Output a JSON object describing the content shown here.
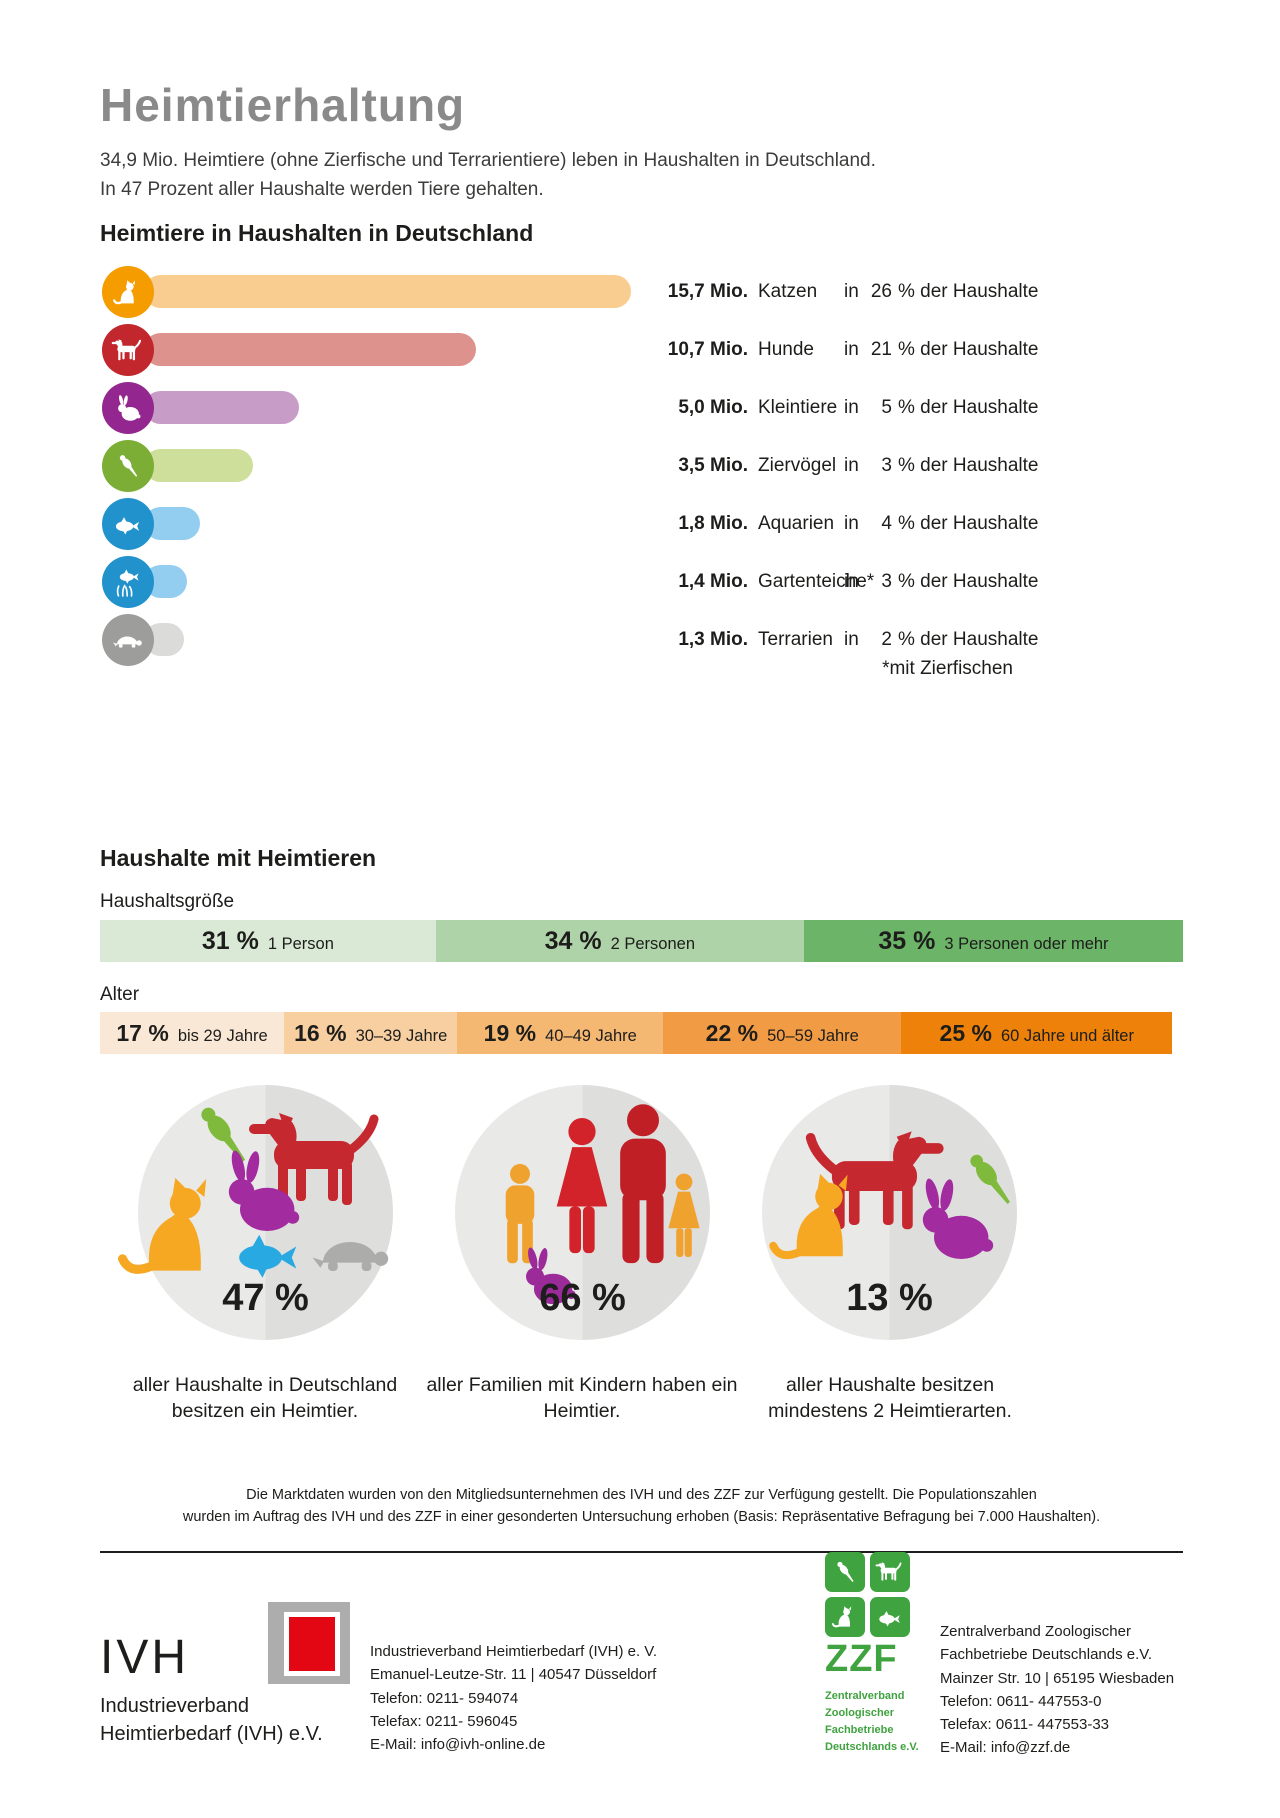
{
  "title": "Heimtierhaltung",
  "intro": {
    "line1": "34,9 Mio. Heimtiere (ohne Zierfische und Terrarientiere) leben in Haushalten in Deutschland.",
    "line2": "In 47 Prozent aller Haushalte werden Tiere gehalten."
  },
  "pets": {
    "heading": "Heimtiere in Haushalten in Deutschland",
    "share_prefix": "in",
    "share_suffix": "% der Haushalte",
    "footnote": "*mit Zierfischen",
    "rows": [
      {
        "value": "15,7 Mio.",
        "name": "Katzen",
        "pct": "26"
      },
      {
        "value": "10,7 Mio.",
        "name": "Hunde",
        "pct": "21"
      },
      {
        "value": "5,0 Mio.",
        "name": "Kleintiere",
        "pct": "5"
      },
      {
        "value": "3,5 Mio.",
        "name": "Ziervögel",
        "pct": "3"
      },
      {
        "value": "1,8 Mio.",
        "name": "Aquarien",
        "pct": "4"
      },
      {
        "value": "1,4 Mio.",
        "name": "Gartenteiche*",
        "pct": "3"
      },
      {
        "value": "1,3 Mio.",
        "name": "Terrarien",
        "pct": "2"
      }
    ]
  },
  "households": {
    "heading": "Haushalte mit Heimtieren",
    "size_label": "Haushaltsgröße",
    "size_segments": [
      {
        "pct": "31 %",
        "label": "1 Person"
      },
      {
        "pct": "34 %",
        "label": "2 Personen"
      },
      {
        "pct": "35 %",
        "label": "3 Personen oder mehr"
      }
    ],
    "age_label": "Alter",
    "age_segments": [
      {
        "pct": "17 %",
        "label": "bis 29 Jahre"
      },
      {
        "pct": "16 %",
        "label": "30–39 Jahre"
      },
      {
        "pct": "19 %",
        "label": "40–49 Jahre"
      },
      {
        "pct": "22 %",
        "label": "50–59 Jahre"
      },
      {
        "pct": "25 %",
        "label": "60 Jahre und älter"
      }
    ]
  },
  "stats": [
    {
      "value": "47 %",
      "caption_line1": "aller Haushalte in Deutschland",
      "caption_line2": "besitzen ein Heimtier."
    },
    {
      "value": "66 %",
      "caption_line1": "aller Familien mit Kindern haben ein",
      "caption_line2": "Heimtier."
    },
    {
      "value": "13 %",
      "caption_line1": "aller Haushalte besitzen",
      "caption_line2": "mindestens 2 Heimtierarten."
    }
  ],
  "disclaimer": {
    "line1": "Die Marktdaten wurden von den Mitgliedsunternehmen des IVH und des ZZF zur Verfügung gestellt. Die Populationszahlen",
    "line2": "wurden im Auftrag des IVH und des ZZF in einer gesonderten Untersuchung erhoben (Basis: Repräsentative Befragung bei 7.000 Haushalten)."
  },
  "footer": {
    "ivh": {
      "wordmark": "IVH",
      "org_line1": "Industrieverband",
      "org_line2": "Heimtierbedarf (IVH) e.V.",
      "address": [
        "Industrieverband Heimtierbedarf (IVH) e. V.",
        "Emanuel-Leutze-Str. 11 | 40547 Düsseldorf",
        "Telefon: 0211- 594074",
        "Telefax: 0211- 596045",
        "E-Mail: info@ivh-online.de"
      ]
    },
    "zzf": {
      "logo_text": "ZZF",
      "logo_sub": [
        "Zentralverband",
        "Zoologischer",
        "Fachbetriebe",
        "Deutschlands e.V."
      ],
      "address": [
        "Zentralverband Zoologischer",
        "Fachbetriebe Deutschlands e.V.",
        "Mainzer Str. 10 | 65195 Wiesbaden",
        "Telefon: 0611- 447553-0",
        "Telefax: 0611- 447553-33",
        "E-Mail: info@zzf.de"
      ]
    }
  },
  "colors": {
    "title_gray": "#8A8A8A",
    "text_dark": "#1D1D1B",
    "cat": "#F59C00",
    "cat_bar": "#F9CD90",
    "dog": "#C1272D",
    "dog_bar": "#DD928E",
    "small_animal": "#93278F",
    "small_animal_bar": "#C79DC8",
    "bird": "#7CAD35",
    "bird_bar": "#CDDF9B",
    "fish": "#2292CC",
    "fish_bar": "#93CEF0",
    "terrarium": "#9D9D9C",
    "terrarium_bar": "#DBDBDA",
    "household_segments": [
      "#DAE9D5",
      "#AFD3A8",
      "#6CB468"
    ],
    "age_segments": [
      "#FAE8D6",
      "#F8CFA0",
      "#F5B873",
      "#F29B45",
      "#EE810A"
    ],
    "stat_circle_bg": "#E9E9E8",
    "zzf_green": "#3FA33F",
    "ivh_red": "#E30613",
    "ivh_gray": "#ADADAD"
  },
  "chart_data": [
    {
      "type": "bar",
      "orientation": "horizontal",
      "title": "Heimtiere in Haushalten in Deutschland",
      "categories": [
        "Katzen",
        "Hunde",
        "Kleintiere",
        "Ziervögel",
        "Aquarien",
        "Gartenteiche*",
        "Terrarien"
      ],
      "values": [
        15.7,
        10.7,
        5.0,
        3.5,
        1.8,
        1.4,
        1.3
      ],
      "unit": "Mio.",
      "share_of_households_pct": [
        26,
        21,
        5,
        3,
        4,
        3,
        2
      ],
      "footnote": "*mit Zierfischen"
    },
    {
      "type": "bar",
      "subtype": "stacked-100",
      "title": "Haushaltsgröße",
      "categories": [
        "1 Person",
        "2 Personen",
        "3 Personen oder mehr"
      ],
      "values": [
        31,
        34,
        35
      ],
      "unit": "%"
    },
    {
      "type": "bar",
      "subtype": "stacked-100",
      "title": "Alter",
      "categories": [
        "bis 29 Jahre",
        "30–39 Jahre",
        "40–49 Jahre",
        "50–59 Jahre",
        "60 Jahre und älter"
      ],
      "values": [
        17,
        16,
        19,
        22,
        25
      ],
      "unit": "%"
    },
    {
      "type": "stat",
      "items": [
        {
          "value": 47,
          "unit": "%",
          "label": "aller Haushalte in Deutschland besitzen ein Heimtier."
        },
        {
          "value": 66,
          "unit": "%",
          "label": "aller Familien mit Kindern haben ein Heimtier."
        },
        {
          "value": 13,
          "unit": "%",
          "label": "aller Haushalte besitzen mindestens 2 Heimtierarten."
        }
      ]
    }
  ]
}
